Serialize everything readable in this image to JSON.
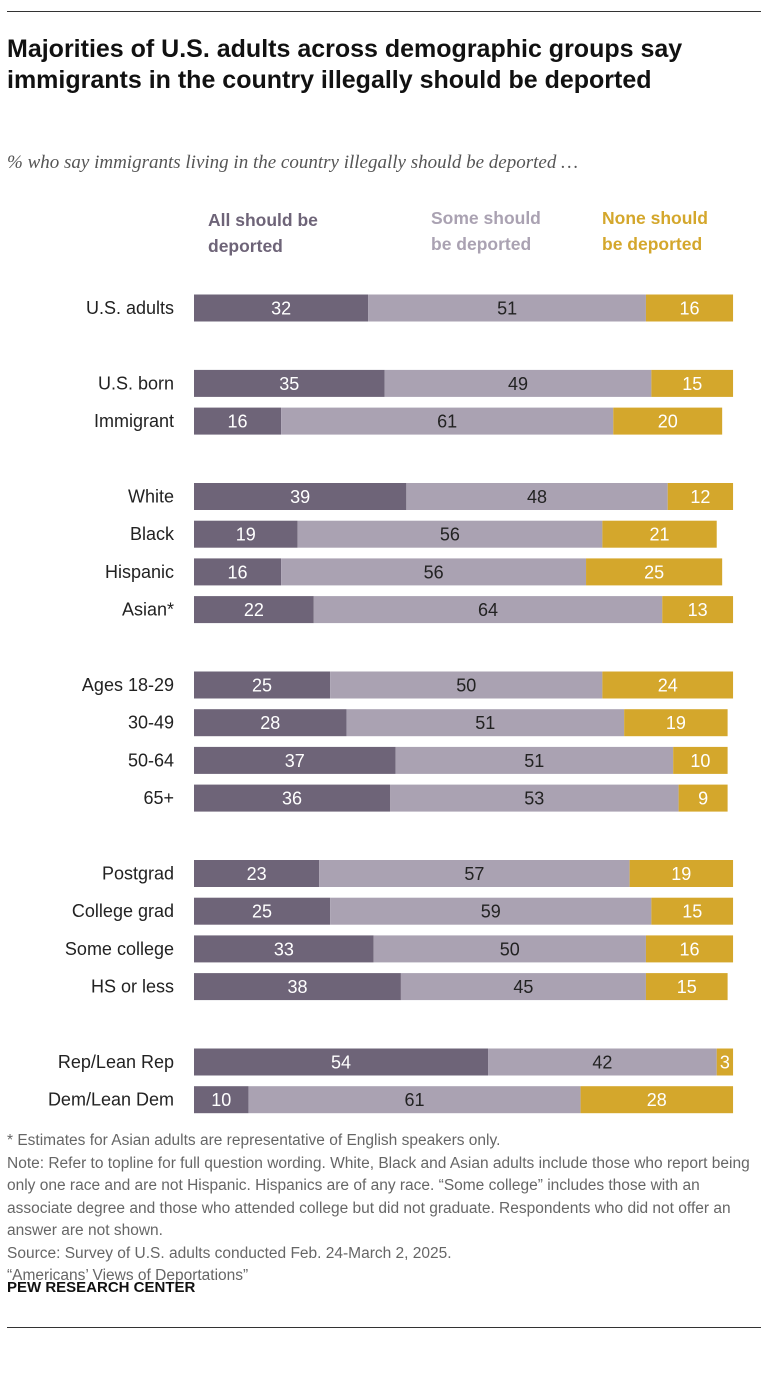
{
  "title": "Majorities of U.S. adults across demographic groups say immigrants in the country illegally should be deported",
  "subtitle": "% who say immigrants living in the country illegally should be deported …",
  "colors": {
    "all": "#6e6478",
    "some": "#aaa2b2",
    "none": "#d4a72c"
  },
  "chart_data": {
    "type": "bar",
    "orientation": "horizontal-stacked",
    "xlim": [
      0,
      100
    ],
    "series": [
      {
        "name": "All should be deported",
        "color": "#6e6478"
      },
      {
        "name": "Some should be deported",
        "color": "#aaa2b2"
      },
      {
        "name": "None should be deported",
        "color": "#d4a72c"
      }
    ],
    "groups": [
      [
        {
          "label": "U.S. adults",
          "values": [
            32,
            51,
            16
          ]
        }
      ],
      [
        {
          "label": "U.S. born",
          "values": [
            35,
            49,
            15
          ]
        },
        {
          "label": "Immigrant",
          "values": [
            16,
            61,
            20
          ]
        }
      ],
      [
        {
          "label": "White",
          "values": [
            39,
            48,
            12
          ]
        },
        {
          "label": "Black",
          "values": [
            19,
            56,
            21
          ]
        },
        {
          "label": "Hispanic",
          "values": [
            16,
            56,
            25
          ]
        },
        {
          "label": "Asian*",
          "values": [
            22,
            64,
            13
          ]
        }
      ],
      [
        {
          "label": "Ages 18-29",
          "values": [
            25,
            50,
            24
          ]
        },
        {
          "label": "30-49",
          "values": [
            28,
            51,
            19
          ]
        },
        {
          "label": "50-64",
          "values": [
            37,
            51,
            10
          ]
        },
        {
          "label": "65+",
          "values": [
            36,
            53,
            9
          ]
        }
      ],
      [
        {
          "label": "Postgrad",
          "values": [
            23,
            57,
            19
          ]
        },
        {
          "label": "College grad",
          "values": [
            25,
            59,
            15
          ]
        },
        {
          "label": "Some college",
          "values": [
            33,
            50,
            16
          ]
        },
        {
          "label": "HS or less",
          "values": [
            38,
            45,
            15
          ]
        }
      ],
      [
        {
          "label": "Rep/Lean Rep",
          "values": [
            54,
            42,
            3
          ]
        },
        {
          "label": "Dem/Lean Dem",
          "values": [
            10,
            61,
            28
          ]
        }
      ]
    ]
  },
  "legend": {
    "all": [
      "All should be",
      "deported"
    ],
    "some": [
      "Some should",
      "be deported"
    ],
    "none": [
      "None should",
      "be deported"
    ]
  },
  "notes": [
    "* Estimates for Asian adults are representative of English speakers only.",
    "Note: Refer to topline for full question wording. White, Black and Asian adults include those who report being only one race and are not Hispanic. Hispanics are of any race. “Some college” includes those with an associate degree and those who attended college but did not graduate. Respondents who did not offer an answer are not shown.",
    "Source: Survey of U.S. adults conducted Feb. 24-March 2, 2025.",
    "“Americans’ Views of Deportations”"
  ],
  "brand": "PEW RESEARCH CENTER"
}
